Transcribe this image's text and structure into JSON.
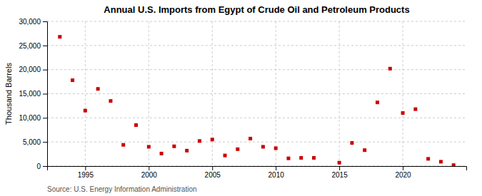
{
  "chart_data": {
    "type": "scatter",
    "title": "Annual U.S. Imports from Egypt of Crude Oil and Petroleum Products",
    "ylabel": "Thousand Barrels",
    "source": "Source: U.S. Energy Information Administration",
    "x": [
      1993,
      1994,
      1995,
      1996,
      1997,
      1998,
      1999,
      2000,
      2001,
      2002,
      2003,
      2004,
      2005,
      2006,
      2007,
      2008,
      2009,
      2010,
      2011,
      2012,
      2013,
      2015,
      2016,
      2017,
      2018,
      2019,
      2020,
      2021,
      2022,
      2023,
      2024
    ],
    "values": [
      26800,
      17800,
      11500,
      16000,
      13500,
      4400,
      8500,
      4000,
      2600,
      4100,
      3200,
      5200,
      5500,
      2200,
      3500,
      5700,
      4000,
      3700,
      1600,
      1700,
      1700,
      700,
      4800,
      3300,
      13200,
      20200,
      11000,
      11800,
      1500,
      900,
      200
    ],
    "color": "#cc0000",
    "marker": "square",
    "xlim": [
      1992,
      2025
    ],
    "xticks": [
      1995,
      2000,
      2005,
      2010,
      2015,
      2020
    ],
    "ylim": [
      0,
      30000
    ],
    "yticks": [
      0,
      {
        "value": 5000,
        "label": "5,000"
      },
      {
        "value": 10000,
        "label": "10,000"
      },
      {
        "value": 15000,
        "label": "15,000"
      },
      {
        "value": 20000,
        "label": "20,000"
      },
      {
        "value": 25000,
        "label": "25,000"
      },
      {
        "value": 30000,
        "label": "30,000"
      }
    ],
    "grid": true
  }
}
